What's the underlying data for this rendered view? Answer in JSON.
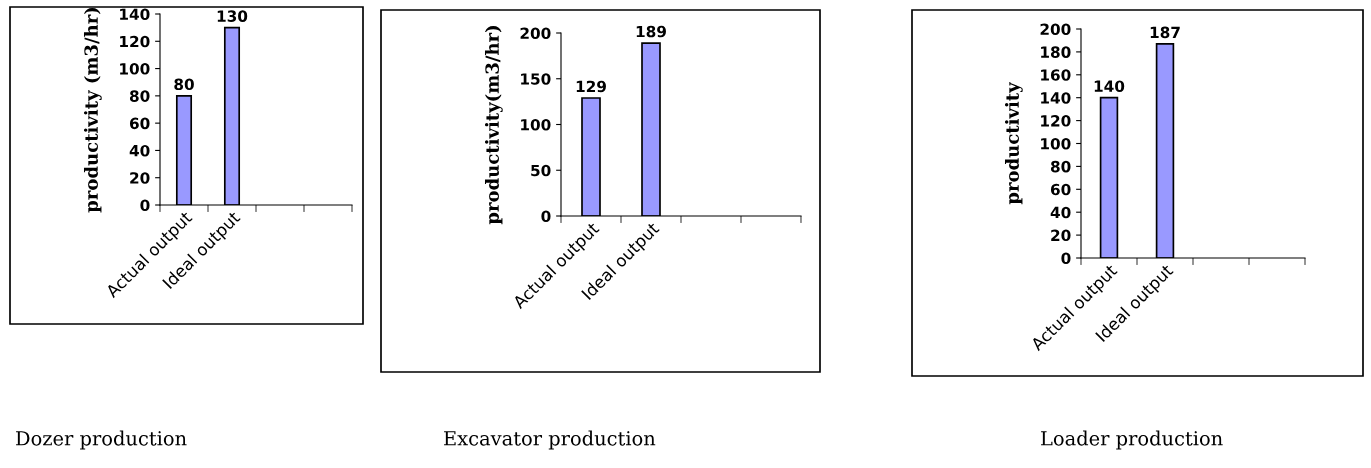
{
  "chart_data": [
    {
      "type": "bar",
      "title": "Dozer production",
      "ylabel": "productivity (m3/hr)",
      "categories": [
        "Actual output",
        "Ideal output",
        null,
        null
      ],
      "values": [
        80,
        130,
        null,
        null
      ],
      "color": "#9999ff",
      "ylim": [
        0,
        140
      ],
      "yticks": [
        0,
        20,
        40,
        60,
        80,
        100,
        120,
        140
      ],
      "data_labels": true,
      "grid": false,
      "legend": false
    },
    {
      "type": "bar",
      "title": "Excavator production",
      "ylabel": "productivity(m3/hr)",
      "categories": [
        "Actual output",
        "Ideal output",
        null,
        null
      ],
      "values": [
        129,
        189,
        null,
        null
      ],
      "color": "#9999ff",
      "ylim": [
        0,
        200
      ],
      "yticks": [
        0,
        50,
        100,
        150,
        200
      ],
      "data_labels": true,
      "grid": false,
      "legend": false
    },
    {
      "type": "bar",
      "title": "Loader production",
      "ylabel": "productivity",
      "categories": [
        "Actual output",
        "Ideal output",
        null,
        null
      ],
      "values": [
        140,
        187,
        null,
        null
      ],
      "color": "#9999ff",
      "ylim": [
        0,
        200
      ],
      "yticks": [
        0,
        20,
        40,
        60,
        80,
        100,
        120,
        140,
        160,
        180,
        200
      ],
      "data_labels": true,
      "grid": false,
      "legend": false
    }
  ]
}
